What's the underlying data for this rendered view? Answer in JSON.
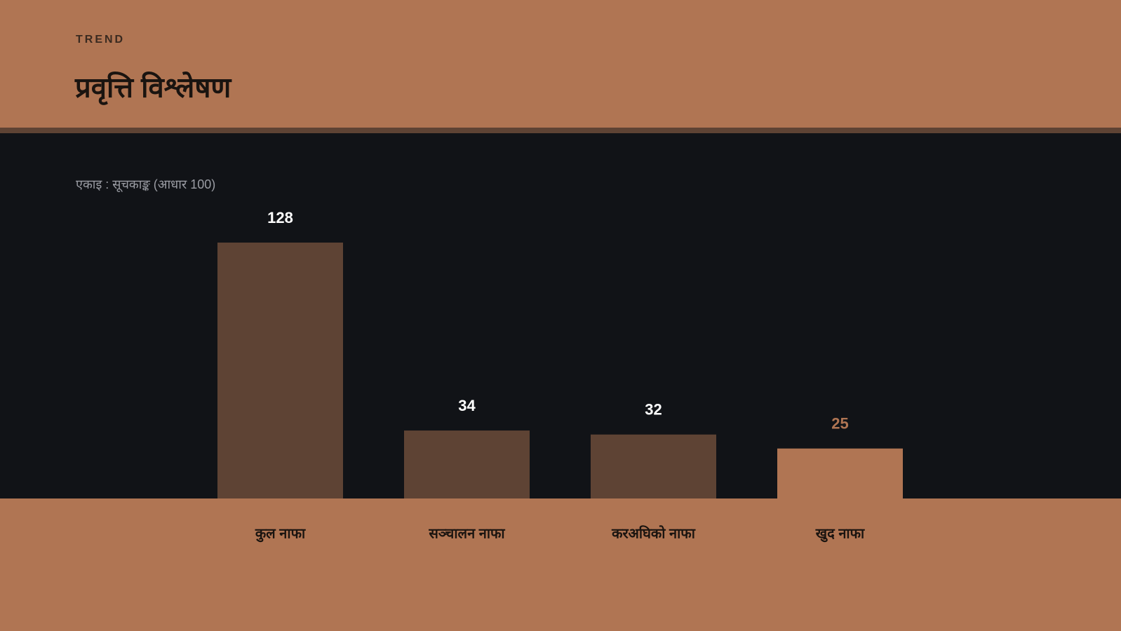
{
  "chart_data": {
    "type": "bar",
    "eyebrow": "TREND",
    "title": "प्रवृत्ति विश्लेषण",
    "subtitle": "एकाइ : सूचकाङ्क (आधार 100)",
    "categories": [
      "कुल नाफा",
      "सञ्चालन नाफा",
      "करअघिको नाफा",
      "खुद नाफा"
    ],
    "values": [
      128,
      34,
      32,
      25
    ],
    "colors": [
      "#5e4334",
      "#5e4334",
      "#5e4334",
      "#b07553"
    ],
    "label_colors": [
      "#ffffff",
      "#ffffff",
      "#ffffff",
      "#b07553"
    ]
  }
}
